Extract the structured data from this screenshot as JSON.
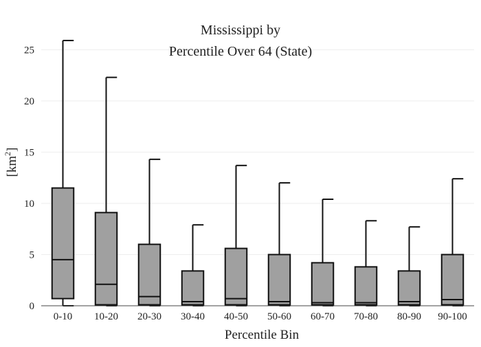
{
  "chart_data": {
    "type": "box",
    "title_line1": "Mississippi  by",
    "title_line2": "Percentile Over 64 (State)",
    "xlabel": "Percentile Bin",
    "ylabel_base": "[km",
    "ylabel_sup": "2",
    "ylabel_end": "]",
    "ylim": [
      0,
      26.5
    ],
    "yticks": [
      0,
      5,
      10,
      15,
      20,
      25
    ],
    "grid": true,
    "box_fill": "#a0a0a0",
    "line_color": "#111111",
    "categories": [
      "0-10",
      "10-20",
      "20-30",
      "30-40",
      "40-50",
      "50-60",
      "60-70",
      "70-80",
      "80-90",
      "90-100"
    ],
    "boxes": [
      {
        "min": 0.0,
        "q1": 0.7,
        "median": 4.5,
        "q3": 11.5,
        "max": 25.9
      },
      {
        "min": 0.0,
        "q1": 0.1,
        "median": 2.1,
        "q3": 9.1,
        "max": 22.3
      },
      {
        "min": 0.0,
        "q1": 0.1,
        "median": 0.9,
        "q3": 6.0,
        "max": 14.3
      },
      {
        "min": 0.0,
        "q1": 0.1,
        "median": 0.4,
        "q3": 3.4,
        "max": 7.9
      },
      {
        "min": 0.0,
        "q1": 0.1,
        "median": 0.7,
        "q3": 5.6,
        "max": 13.7
      },
      {
        "min": 0.0,
        "q1": 0.1,
        "median": 0.4,
        "q3": 5.0,
        "max": 12.0
      },
      {
        "min": 0.0,
        "q1": 0.1,
        "median": 0.3,
        "q3": 4.2,
        "max": 10.4
      },
      {
        "min": 0.0,
        "q1": 0.1,
        "median": 0.3,
        "q3": 3.8,
        "max": 8.3
      },
      {
        "min": 0.0,
        "q1": 0.1,
        "median": 0.4,
        "q3": 3.4,
        "max": 7.7
      },
      {
        "min": 0.0,
        "q1": 0.1,
        "median": 0.6,
        "q3": 5.0,
        "max": 12.4
      }
    ]
  }
}
